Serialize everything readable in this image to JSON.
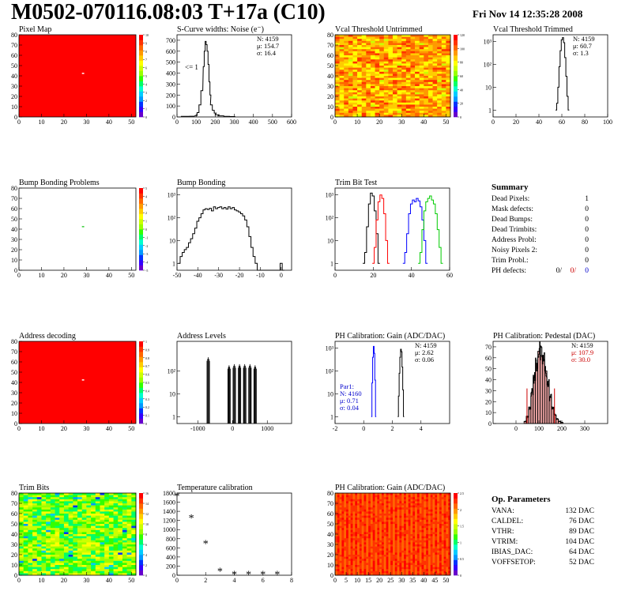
{
  "header": {
    "title": "M0502-070116.08:03 T+17a (C10)",
    "date": "Fri Nov 14 12:35:28 2008"
  },
  "colors": {
    "map_red": "#ff0000",
    "trim_blue": "#0000ff",
    "trim_red": "#ff0000",
    "trim_green": "#00cc00",
    "stat_red": "#cc0000",
    "stat_blue": "#0000cc",
    "pedestal_fill": "#e8a0a0"
  },
  "chart_data": [
    {
      "id": "pixel_map",
      "type": "heatmap",
      "title": "Pixel Map",
      "xlim": [
        0,
        52
      ],
      "ylim": [
        0,
        80
      ],
      "xticks": [
        "0",
        "10",
        "20",
        "30",
        "40",
        "50"
      ],
      "yticks": [
        "0",
        "10",
        "20",
        "30",
        "40",
        "50",
        "60",
        "70",
        "80"
      ],
      "fill": "uniform-high",
      "zlim": [
        0,
        10
      ],
      "zticks": [
        "0",
        "1",
        "2",
        "3",
        "4",
        "5",
        "6",
        "7",
        "8",
        "9",
        "10"
      ],
      "dead_pixel": {
        "col": 28,
        "row": 42
      }
    },
    {
      "id": "scurve_noise",
      "type": "line",
      "title": "S-Curve widths: Noise (e⁻)",
      "xlim": [
        0,
        600
      ],
      "ylim": [
        0,
        750
      ],
      "xticks": [
        "0",
        "100",
        "200",
        "300",
        "400",
        "500",
        "600"
      ],
      "yticks": [
        "0",
        "100",
        "200",
        "300",
        "400",
        "500",
        "600",
        "700"
      ],
      "annotation": "<= 1",
      "stats": [
        "N: 4159",
        "μ: 154.7",
        "σ: 16.4"
      ],
      "series": [
        {
          "x": [
            40,
            80,
            100,
            110,
            120,
            130,
            140,
            145,
            150,
            155,
            160,
            165,
            170,
            175,
            180,
            190,
            200,
            210,
            230,
            260,
            290
          ],
          "values": [
            5,
            6,
            12,
            40,
            110,
            240,
            460,
            600,
            690,
            660,
            600,
            480,
            320,
            200,
            110,
            60,
            35,
            20,
            10,
            5,
            4
          ]
        }
      ]
    },
    {
      "id": "vcal_untrimmed",
      "type": "heatmap",
      "title": "Vcal Threshold Untrimmed",
      "xlim": [
        0,
        52
      ],
      "ylim": [
        0,
        80
      ],
      "xticks": [
        "0",
        "10",
        "20",
        "30",
        "40",
        "50"
      ],
      "yticks": [
        "0",
        "10",
        "20",
        "30",
        "40",
        "50",
        "60",
        "70",
        "80"
      ],
      "fill": "noisy-high",
      "zlim": [
        0,
        130
      ],
      "zticks": [
        "0",
        "20",
        "40",
        "60",
        "80",
        "100",
        "120"
      ]
    },
    {
      "id": "vcal_trimmed",
      "type": "line",
      "title": "Vcal Threshold Trimmed",
      "log_y": true,
      "xlim": [
        0,
        100
      ],
      "ylim": [
        0.5,
        2000
      ],
      "xticks": [
        "0",
        "20",
        "40",
        "60",
        "80",
        "100"
      ],
      "yticks": [
        "1",
        "10",
        "10²",
        "10³"
      ],
      "stats": [
        "N: 4159",
        "μ: 60.7",
        "σ: 1.3"
      ],
      "series": [
        {
          "x": [
            55,
            56,
            57,
            58,
            59,
            60,
            61,
            62,
            63,
            64,
            65,
            66
          ],
          "values": [
            1,
            2,
            10,
            80,
            400,
            1200,
            1500,
            900,
            200,
            30,
            4,
            1
          ]
        }
      ]
    },
    {
      "id": "bump_bonding_problems",
      "type": "heatmap",
      "title": "Bump Bonding Problems",
      "xlim": [
        0,
        52
      ],
      "ylim": [
        0,
        80
      ],
      "xticks": [
        "0",
        "10",
        "20",
        "30",
        "40",
        "50"
      ],
      "yticks": [
        "0",
        "10",
        "20",
        "30",
        "40",
        "50",
        "60",
        "70",
        "80"
      ],
      "fill": "empty",
      "zlim": [
        -5,
        5
      ],
      "zticks": [
        "-5",
        "-4",
        "-3",
        "-2",
        "-1",
        "0",
        "1",
        "2",
        "3",
        "4",
        "5"
      ],
      "dead_pixel": {
        "col": 28,
        "row": 42
      }
    },
    {
      "id": "bump_bonding",
      "type": "line",
      "title": "Bump Bonding",
      "log_y": true,
      "xlim": [
        -50,
        5
      ],
      "ylim": [
        0.5,
        2000
      ],
      "xticks": [
        "-50",
        "-40",
        "-30",
        "-20",
        "-10",
        "0"
      ],
      "yticks": [
        "1",
        "10",
        "10²",
        "10³"
      ],
      "series": [
        {
          "x": [
            -49,
            -48,
            -47,
            -46,
            -45,
            -44,
            -43,
            -42,
            -41,
            -40,
            -39,
            -38,
            -37,
            -36,
            -35,
            -34,
            -33,
            -32,
            -31,
            -30,
            -29,
            -28,
            -27,
            -26,
            -25,
            -24,
            -23,
            -22,
            -21,
            -20,
            -19,
            -18,
            -17,
            -16,
            -15,
            -14,
            -13,
            -12,
            -11,
            -10,
            -9,
            -8,
            -7,
            -6,
            -5,
            -4,
            -3,
            -2,
            -1,
            0,
            1
          ],
          "values": [
            1,
            2,
            3,
            4,
            5,
            8,
            12,
            20,
            35,
            70,
            100,
            150,
            220,
            250,
            230,
            260,
            200,
            300,
            250,
            280,
            300,
            250,
            280,
            240,
            300,
            250,
            280,
            220,
            200,
            180,
            150,
            120,
            80,
            40,
            15,
            5,
            2,
            1,
            0,
            0,
            0,
            0,
            0,
            0,
            0,
            0,
            0,
            0,
            0,
            1,
            0
          ]
        }
      ]
    },
    {
      "id": "trim_bit_test",
      "type": "line",
      "title": "Trim Bit Test",
      "log_y": true,
      "xlim": [
        0,
        60
      ],
      "ylim": [
        0.5,
        2000
      ],
      "xticks": [
        "0",
        "20",
        "40",
        "60"
      ],
      "yticks": [
        "1",
        "10",
        "10²",
        "10³"
      ],
      "series": [
        {
          "color": "#000000",
          "x": [
            15,
            16,
            17,
            18,
            19,
            20,
            21,
            22,
            23
          ],
          "values": [
            1,
            3,
            40,
            400,
            1200,
            900,
            200,
            20,
            1
          ]
        },
        {
          "color": "#ff0000",
          "x": [
            20,
            21,
            22,
            23,
            24,
            25,
            26,
            27,
            28
          ],
          "values": [
            1,
            5,
            80,
            500,
            1000,
            700,
            150,
            10,
            1
          ]
        },
        {
          "color": "#0000ff",
          "x": [
            36,
            37,
            38,
            39,
            40,
            41,
            42,
            43,
            44,
            45,
            46,
            47,
            48
          ],
          "values": [
            1,
            3,
            20,
            150,
            400,
            600,
            500,
            700,
            550,
            300,
            80,
            10,
            1
          ]
        },
        {
          "color": "#00cc00",
          "x": [
            44,
            45,
            46,
            47,
            48,
            49,
            50,
            51,
            52,
            53,
            54,
            55,
            56
          ],
          "values": [
            1,
            3,
            30,
            200,
            500,
            700,
            900,
            600,
            400,
            150,
            30,
            5,
            1
          ]
        }
      ]
    },
    {
      "id": "address_decoding",
      "type": "heatmap",
      "title": "Address decoding",
      "xlim": [
        0,
        52
      ],
      "ylim": [
        0,
        80
      ],
      "xticks": [
        "0",
        "10",
        "20",
        "30",
        "40",
        "50"
      ],
      "yticks": [
        "0",
        "10",
        "20",
        "30",
        "40",
        "50",
        "60",
        "70",
        "80"
      ],
      "fill": "uniform-high",
      "zlim": [
        0,
        1
      ],
      "zticks": [
        "0",
        "0.1",
        "0.2",
        "0.3",
        "0.4",
        "0.5",
        "0.6",
        "0.7",
        "0.8",
        "0.9",
        "1"
      ],
      "dead_pixel": {
        "col": 28,
        "row": 42
      }
    },
    {
      "id": "address_levels",
      "type": "line",
      "title": "Address Levels",
      "log_y": true,
      "xlim": [
        -1600,
        1700
      ],
      "ylim": [
        0.5,
        2000
      ],
      "xticks": [
        "-1000",
        "0",
        "1000"
      ],
      "yticks": [
        "1",
        "10",
        "10²"
      ],
      "peaks": [
        {
          "x": -700,
          "value": 400
        },
        {
          "x": -100,
          "value": 180
        },
        {
          "x": 50,
          "value": 200
        },
        {
          "x": 200,
          "value": 200
        },
        {
          "x": 350,
          "value": 200
        },
        {
          "x": 500,
          "value": 200
        },
        {
          "x": 650,
          "value": 180
        }
      ]
    },
    {
      "id": "ph_gain",
      "type": "line",
      "title": "PH Calibration: Gain (ADC/DAC)",
      "log_y": true,
      "xlim": [
        -2,
        6
      ],
      "ylim": [
        0.5,
        2000
      ],
      "xticks": [
        "-2",
        "0",
        "2",
        "4"
      ],
      "yticks": [
        "1",
        "10",
        "10²",
        "10³"
      ],
      "stats": [
        "N: 4159",
        "μ: 2.62",
        "σ: 0.06"
      ],
      "stats2": [
        "Par1:",
        "N: 4160",
        "μ: 0.71",
        "σ: 0.04"
      ],
      "series": [
        {
          "color": "#000000",
          "x": [
            2.4,
            2.45,
            2.5,
            2.55,
            2.6,
            2.65,
            2.7,
            2.75,
            2.8
          ],
          "values": [
            1,
            8,
            80,
            400,
            900,
            700,
            150,
            15,
            1
          ]
        },
        {
          "color": "#0000ff",
          "x": [
            0.55,
            0.6,
            0.65,
            0.7,
            0.75,
            0.8,
            0.85
          ],
          "values": [
            1,
            30,
            400,
            1200,
            600,
            40,
            1
          ]
        }
      ]
    },
    {
      "id": "ph_pedestal",
      "type": "bar",
      "title": "PH Calibration: Pedestal (DAC)",
      "xlim": [
        -100,
        400
      ],
      "ylim": [
        0,
        75
      ],
      "xticks": [
        "0",
        "100",
        "200",
        "300"
      ],
      "yticks": [
        "0",
        "10",
        "20",
        "30",
        "40",
        "50",
        "60",
        "70"
      ],
      "stats": [
        "N: 4159",
        "μ: 107.9",
        "σ: 30.0"
      ],
      "series": [
        {
          "x": [
            40,
            50,
            60,
            70,
            80,
            90,
            100,
            110,
            120,
            130,
            140,
            150,
            160,
            170,
            180,
            190,
            200
          ],
          "values": [
            2,
            6,
            15,
            28,
            42,
            55,
            66,
            62,
            58,
            48,
            36,
            24,
            15,
            8,
            4,
            2,
            1
          ]
        }
      ],
      "markers": [
        {
          "x": 48,
          "value": 32
        },
        {
          "x": 168,
          "value": 32
        }
      ]
    },
    {
      "id": "trim_bits",
      "type": "heatmap",
      "title": "Trim Bits",
      "xlim": [
        0,
        52
      ],
      "ylim": [
        0,
        80
      ],
      "xticks": [
        "0",
        "10",
        "20",
        "30",
        "40",
        "50"
      ],
      "yticks": [
        "0",
        "10",
        "20",
        "30",
        "40",
        "50",
        "60",
        "70",
        "80"
      ],
      "fill": "noisy-mid",
      "zlim": [
        0,
        16
      ],
      "zticks": [
        "0",
        "2",
        "4",
        "6",
        "8",
        "10",
        "12",
        "14",
        "16"
      ]
    },
    {
      "id": "temperature_calibration",
      "type": "scatter",
      "title": "Temperature calibration",
      "xlim": [
        0,
        8
      ],
      "ylim": [
        0,
        1800
      ],
      "xticks": [
        "0",
        "2",
        "4",
        "6",
        "8"
      ],
      "yticks": [
        "0",
        "200",
        "400",
        "600",
        "800",
        "1000",
        "1200",
        "1400",
        "1600",
        "1800"
      ],
      "x": [
        0,
        1,
        2,
        3,
        4,
        5,
        6,
        7
      ],
      "values": [
        1720,
        1250,
        680,
        80,
        10,
        10,
        10,
        10
      ]
    },
    {
      "id": "ph_gain_map",
      "type": "heatmap",
      "title": "PH Calibration: Gain (ADC/DAC)",
      "xlim": [
        0,
        52
      ],
      "ylim": [
        0,
        80
      ],
      "xticks": [
        "0",
        "5",
        "10",
        "15",
        "20",
        "25",
        "30",
        "35",
        "40",
        "45",
        "50"
      ],
      "yticks": [
        "0",
        "10",
        "20",
        "30",
        "40",
        "50",
        "60",
        "70",
        "80"
      ],
      "fill": "noisy-stripes",
      "zlim": [
        0,
        2.6
      ],
      "zticks": [
        "0",
        "0.5",
        "1",
        "1.5",
        "2",
        "2.5"
      ]
    }
  ],
  "summary": {
    "title": "Summary",
    "rows": [
      {
        "label": "Dead Pixels:",
        "value": "1"
      },
      {
        "label": "Mask defects:",
        "value": "0"
      },
      {
        "label": "Dead Bumps:",
        "value": "0"
      },
      {
        "label": "Dead Trimbits:",
        "value": "0"
      },
      {
        "label": "Address Probl:",
        "value": "0"
      },
      {
        "label": "Noisy Pixels 2:",
        "value": "0"
      },
      {
        "label": "Trim Probl.:",
        "value": "0"
      }
    ],
    "ph_defects": {
      "label": "PH defects:",
      "v1": "0/",
      "v2": "0/",
      "v3": "0"
    }
  },
  "op_params": {
    "title": "Op. Parameters",
    "rows": [
      {
        "label": "VANA:",
        "value": "132 DAC"
      },
      {
        "label": "CALDEL:",
        "value": "76 DAC"
      },
      {
        "label": "VTHR:",
        "value": "89 DAC"
      },
      {
        "label": "VTRIM:",
        "value": "104 DAC"
      },
      {
        "label": "IBIAS_DAC:",
        "value": "64 DAC"
      },
      {
        "label": "VOFFSETOP:",
        "value": "52 DAC"
      }
    ]
  }
}
